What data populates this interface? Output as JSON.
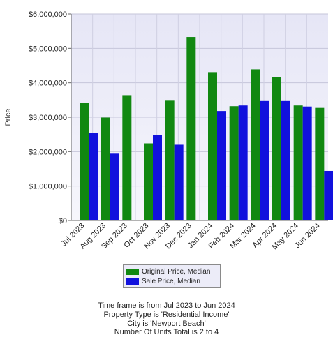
{
  "chart_data": {
    "type": "bar",
    "ylabel": "Price",
    "ylim": [
      0,
      6000000
    ],
    "yticks": [
      {
        "value": 0,
        "label": "$0"
      },
      {
        "value": 1000000,
        "label": "$1,000,000"
      },
      {
        "value": 2000000,
        "label": "$2,000,000"
      },
      {
        "value": 3000000,
        "label": "$3,000,000"
      },
      {
        "value": 4000000,
        "label": "$4,000,000"
      },
      {
        "value": 5000000,
        "label": "$5,000,000"
      },
      {
        "value": 6000000,
        "label": "$6,000,000"
      }
    ],
    "categories": [
      "Jul 2023",
      "Aug 2023",
      "Sep 2023",
      "Oct 2023",
      "Nov 2023",
      "Dec 2023",
      "Jan 2024",
      "Feb 2024",
      "Mar 2024",
      "Apr 2024",
      "May 2024",
      "Jun 2024"
    ],
    "series": [
      {
        "name": "Original Price, Median",
        "color": "#118811",
        "values": [
          3420000,
          2990000,
          3640000,
          2240000,
          3480000,
          5330000,
          4310000,
          3320000,
          4390000,
          4170000,
          3340000,
          3270000
        ]
      },
      {
        "name": "Sale Price, Median",
        "color": "#1111dd",
        "values": [
          2550000,
          1940000,
          null,
          2480000,
          2200000,
          null,
          3180000,
          3340000,
          3470000,
          3470000,
          3310000,
          1440000
        ]
      }
    ],
    "grid": true,
    "legend_position": "bottom"
  },
  "footer": {
    "lines": [
      "Time frame is from Jul 2023 to Jun 2024",
      "Property Type is 'Residential Income'",
      "City is 'Newport Beach'",
      "Number Of Units Total is 2 to 4"
    ]
  },
  "colors": {
    "plot_background": "#f0f0fa",
    "plot_background_top": "#e4e4f4",
    "grid": "#c8c8dc"
  }
}
